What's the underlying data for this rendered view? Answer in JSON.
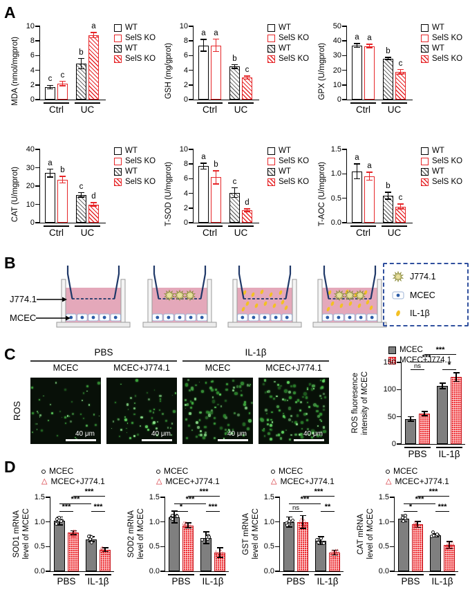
{
  "panel_labels": {
    "a": "A",
    "b": "B",
    "c": "C",
    "d": "D"
  },
  "panelA": {
    "legend": [
      {
        "label": "WT",
        "style": "wtopen"
      },
      {
        "label": "SelS KO",
        "style": "koopen"
      },
      {
        "label": "WT",
        "style": "wthatch"
      },
      {
        "label": "SelS KO",
        "style": "kohatch"
      }
    ]
  },
  "panelB": {
    "pointer_labels": [
      "J774.1",
      "MCEC"
    ],
    "diagrams": [
      {
        "j774": false,
        "il1b": false
      },
      {
        "j774": true,
        "il1b": false
      },
      {
        "j774": false,
        "il1b": true
      },
      {
        "j774": true,
        "il1b": true
      }
    ],
    "legend": [
      {
        "icon": "j774-icon",
        "label": "J774.1"
      },
      {
        "icon": "mcec-icon",
        "label": "MCEC"
      },
      {
        "icon": "il1b-icon",
        "label": "IL-1β"
      }
    ]
  },
  "panelC": {
    "row_label": "ROS",
    "group_headers": [
      "PBS",
      "IL-1β"
    ],
    "col_headers": [
      "MCEC",
      "MCEC+J774.1",
      "MCEC",
      "MCEC+J774.1"
    ],
    "scale_label": "40 μm",
    "images": [
      {
        "dots": 42
      },
      {
        "dots": 55
      },
      {
        "dots": 95
      },
      {
        "dots": 120
      }
    ],
    "legend": [
      {
        "label": "MCEC",
        "style": "gray"
      },
      {
        "label": "MCEC+J774.1",
        "style": "redcheck"
      }
    ]
  },
  "panelD": {
    "legend": [
      {
        "label": "MCEC",
        "marker": "circle"
      },
      {
        "label": "MCEC+J774.1",
        "marker": "triangle"
      }
    ]
  },
  "colors": {
    "red": "#e62528",
    "gray_bar": "#7f7f7f",
    "navy": "#1f3868",
    "pink": "#e4a8ba",
    "legend_border": "#2f4f9e",
    "green_dot": "#57c14f",
    "gold": "#f3c024"
  },
  "chart_data": [
    {
      "panel": "A",
      "type": "bar",
      "ylabel": "MDA (nmol/mgprot)",
      "categories": [
        "Ctrl",
        "UC"
      ],
      "bar_names": [
        "WT",
        "SelS KO",
        "WT",
        "SelS KO"
      ],
      "values": [
        1.7,
        2.2,
        4.9,
        8.8
      ],
      "errors": [
        0.25,
        0.3,
        0.7,
        0.35
      ],
      "letters": [
        "c",
        "c",
        "b",
        "a"
      ],
      "ylim": [
        0,
        10
      ],
      "yticks": [
        "0",
        "2",
        "4",
        "6",
        "8",
        "10"
      ]
    },
    {
      "panel": "A",
      "type": "bar",
      "ylabel": "GSH (mg/gprot)",
      "categories": [
        "Ctrl",
        "UC"
      ],
      "bar_names": [
        "WT",
        "SelS KO",
        "WT",
        "SelS KO"
      ],
      "values": [
        7.4,
        7.4,
        4.5,
        3.0
      ],
      "errors": [
        0.8,
        0.85,
        0.25,
        0.2
      ],
      "letters": [
        "a",
        "a",
        "b",
        "c"
      ],
      "ylim": [
        0,
        10
      ],
      "yticks": [
        "0",
        "2",
        "4",
        "6",
        "8",
        "10"
      ]
    },
    {
      "panel": "A",
      "type": "bar",
      "ylabel": "GPX (U/mgprot)",
      "categories": [
        "Ctrl",
        "UC"
      ],
      "bar_names": [
        "WT",
        "SelS KO",
        "WT",
        "SelS KO"
      ],
      "values": [
        37,
        36.5,
        28,
        19
      ],
      "errors": [
        1.3,
        1.2,
        0.9,
        1.5
      ],
      "letters": [
        "a",
        "a",
        "b",
        "c"
      ],
      "ylim": [
        0,
        50
      ],
      "yticks": [
        "0",
        "10",
        "20",
        "30",
        "40",
        "50"
      ]
    },
    {
      "panel": "A",
      "type": "bar",
      "ylabel": "CAT (U/mgprot)",
      "categories": [
        "Ctrl",
        "UC"
      ],
      "bar_names": [
        "WT",
        "SelS KO",
        "WT",
        "SelS KO"
      ],
      "values": [
        27,
        23.5,
        15.2,
        10
      ],
      "errors": [
        2.2,
        1.8,
        1.2,
        0.9
      ],
      "letters": [
        "a",
        "b",
        "c",
        "d"
      ],
      "ylim": [
        0,
        40
      ],
      "yticks": [
        "0",
        "10",
        "20",
        "30",
        "40"
      ]
    },
    {
      "panel": "A",
      "type": "bar",
      "ylabel": "T-SOD (U/mgprot)",
      "categories": [
        "Ctrl",
        "UC"
      ],
      "bar_names": [
        "WT",
        "SelS KO",
        "WT",
        "SelS KO"
      ],
      "values": [
        7.7,
        6.2,
        4.1,
        1.7
      ],
      "errors": [
        0.4,
        0.9,
        0.65,
        0.2
      ],
      "letters": [
        "a",
        "b",
        "c",
        "d"
      ],
      "ylim": [
        0,
        10
      ],
      "yticks": [
        "0",
        "2",
        "4",
        "6",
        "8",
        "10"
      ]
    },
    {
      "panel": "A",
      "type": "bar",
      "ylabel": "T-AOC (U/mgprot)",
      "categories": [
        "Ctrl",
        "UC"
      ],
      "bar_names": [
        "WT",
        "SelS KO",
        "WT",
        "SelS KO"
      ],
      "values": [
        1.05,
        0.95,
        0.55,
        0.33
      ],
      "errors": [
        0.15,
        0.08,
        0.07,
        0.05
      ],
      "letters": [
        "a",
        "a",
        "b",
        "c"
      ],
      "ylim": [
        0,
        1.5
      ],
      "yticks": [
        "0.0",
        "0.5",
        "1.0",
        "1.5"
      ]
    },
    {
      "panel": "C",
      "type": "bar",
      "ylabel_lines": [
        "ROS fluoresence",
        "intensity of MCEC"
      ],
      "categories": [
        "PBS",
        "IL-1β"
      ],
      "bar_names": [
        "MCEC",
        "MCEC+J774.1",
        "MCEC",
        "MCEC+J774.1"
      ],
      "values": [
        46,
        56,
        107,
        123
      ],
      "errors": [
        4,
        4,
        5,
        8
      ],
      "ylim": [
        0,
        150
      ],
      "yticks": [
        "0",
        "50",
        "100",
        "150"
      ],
      "comparisons": [
        {
          "a": 0,
          "b": 1,
          "label": "ns",
          "level": 0
        },
        {
          "a": 0,
          "b": 2,
          "label": "***",
          "level": 1
        },
        {
          "a": 1,
          "b": 3,
          "label": "***",
          "level": 2
        },
        {
          "a": 2,
          "b": 3,
          "label": "*",
          "level": 0
        }
      ]
    },
    {
      "panel": "D",
      "type": "bar",
      "ylabel_lines": [
        "SOD1 mRNA",
        "level of MCEC"
      ],
      "categories": [
        "PBS",
        "IL-1β"
      ],
      "bar_names": [
        "MCEC",
        "MCEC+J774.1",
        "MCEC",
        "MCEC+J774.1"
      ],
      "values": [
        1.02,
        0.78,
        0.65,
        0.44
      ],
      "errors": [
        0.08,
        0.04,
        0.05,
        0.04
      ],
      "ylim": [
        0,
        1.5
      ],
      "yticks": [
        "0.0",
        "0.5",
        "1.0",
        "1.5"
      ],
      "comparisons": [
        {
          "a": 0,
          "b": 1,
          "label": "***",
          "level": 0
        },
        {
          "a": 0,
          "b": 2,
          "label": "***",
          "level": 1
        },
        {
          "a": 1,
          "b": 3,
          "label": "***",
          "level": 2
        },
        {
          "a": 2,
          "b": 3,
          "label": "***",
          "level": 0
        }
      ]
    },
    {
      "panel": "D",
      "type": "bar",
      "ylabel_lines": [
        "SOD2 mRNA",
        "level of MCEC"
      ],
      "categories": [
        "PBS",
        "IL-1β"
      ],
      "bar_names": [
        "MCEC",
        "MCEC+J774.1",
        "MCEC",
        "MCEC+J774.1"
      ],
      "values": [
        1.1,
        0.93,
        0.68,
        0.38
      ],
      "errors": [
        0.12,
        0.05,
        0.12,
        0.1
      ],
      "ylim": [
        0,
        1.5
      ],
      "yticks": [
        "0.0",
        "0.5",
        "1.0",
        "1.5"
      ],
      "comparisons": [
        {
          "a": 0,
          "b": 1,
          "label": "*",
          "level": 0
        },
        {
          "a": 0,
          "b": 2,
          "label": "***",
          "level": 1
        },
        {
          "a": 1,
          "b": 3,
          "label": "***",
          "level": 2
        },
        {
          "a": 2,
          "b": 3,
          "label": "***",
          "level": 0
        }
      ]
    },
    {
      "panel": "D",
      "type": "bar",
      "ylabel_lines": [
        "GST mRNA",
        "level of MCEC"
      ],
      "categories": [
        "PBS",
        "IL-1β"
      ],
      "bar_names": [
        "MCEC",
        "MCEC+J774.1",
        "MCEC",
        "MCEC+J774.1"
      ],
      "values": [
        1.0,
        1.0,
        0.62,
        0.38
      ],
      "errors": [
        0.1,
        0.13,
        0.08,
        0.05
      ],
      "ylim": [
        0,
        1.5
      ],
      "yticks": [
        "0.0",
        "0.5",
        "1.0",
        "1.5"
      ],
      "comparisons": [
        {
          "a": 0,
          "b": 1,
          "label": "ns",
          "level": 0
        },
        {
          "a": 0,
          "b": 2,
          "label": "***",
          "level": 1
        },
        {
          "a": 1,
          "b": 3,
          "label": "***",
          "level": 2
        },
        {
          "a": 2,
          "b": 3,
          "label": "**",
          "level": 0
        }
      ]
    },
    {
      "panel": "D",
      "type": "bar",
      "ylabel_lines": [
        "CAT mRNA",
        "level of MCEC"
      ],
      "categories": [
        "PBS",
        "IL-1β"
      ],
      "bar_names": [
        "MCEC",
        "MCEC+J774.1",
        "MCEC",
        "MCEC+J774.1"
      ],
      "values": [
        1.07,
        0.95,
        0.73,
        0.53
      ],
      "errors": [
        0.07,
        0.06,
        0.03,
        0.07
      ],
      "ylim": [
        0,
        1.5
      ],
      "yticks": [
        "0.0",
        "0.5",
        "1.0",
        "1.5"
      ],
      "comparisons": [
        {
          "a": 0,
          "b": 1,
          "label": "*",
          "level": 0
        },
        {
          "a": 0,
          "b": 2,
          "label": "***",
          "level": 1
        },
        {
          "a": 1,
          "b": 3,
          "label": "***",
          "level": 2
        },
        {
          "a": 2,
          "b": 3,
          "label": "***",
          "level": 0
        }
      ]
    }
  ]
}
